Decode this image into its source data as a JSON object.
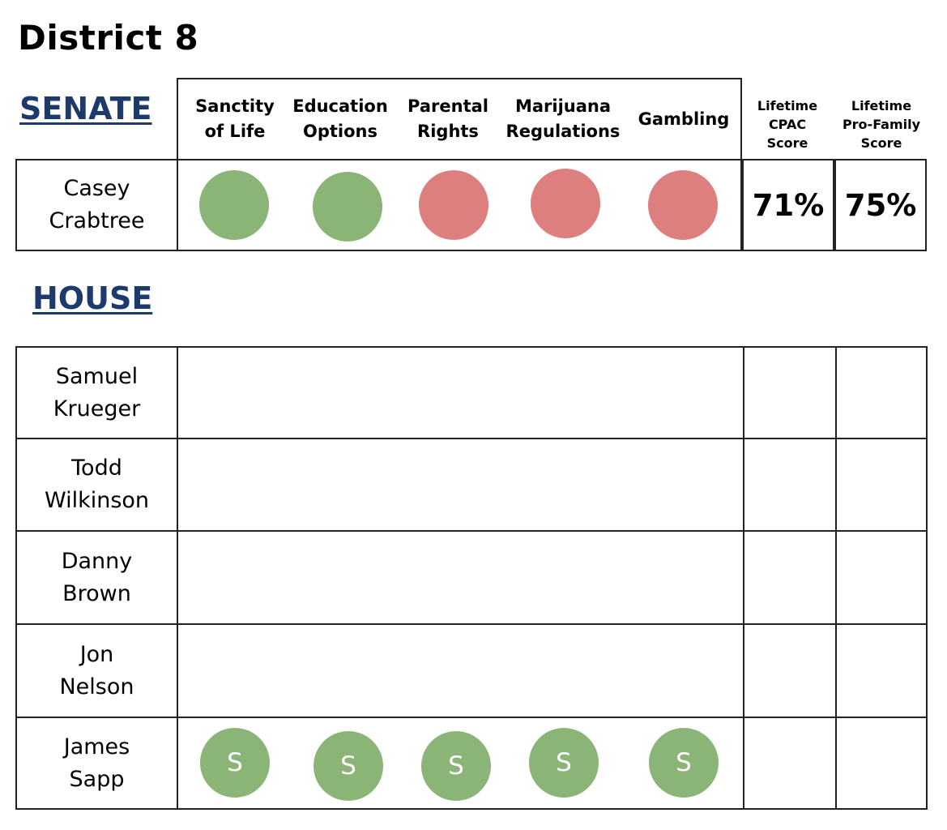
{
  "title": "District 8",
  "senate": {
    "label": "SENATE",
    "columns": [
      "Sanctity\nof Life",
      "Education\nOptions",
      "Parental\nRights",
      "Marijuana\nRegulations",
      "Gambling"
    ],
    "score_columns": [
      "Lifetime\nCPAC\nScore",
      "Lifetime\nPro-Family\nScore"
    ],
    "candidate": {
      "name": "Casey\nCrabtree",
      "positions": [
        "support",
        "support",
        "oppose",
        "oppose",
        "oppose"
      ],
      "cpac_score": "71%",
      "pro_family_score": "75%"
    }
  },
  "house": {
    "label": "HOUSE",
    "candidates": [
      {
        "name": "Samuel\nKrueger",
        "positions": []
      },
      {
        "name": "Todd\nWilkinson",
        "positions": []
      },
      {
        "name": "Danny\nBrown",
        "positions": []
      },
      {
        "name": "Jon\nNelson",
        "positions": []
      },
      {
        "name": "James\nSapp",
        "positions": [
          "S",
          "S",
          "S",
          "S",
          "S"
        ]
      }
    ]
  },
  "colors": {
    "support": "#8ab576",
    "oppose": "#dd7f7f",
    "section_label": "#1c3a6b"
  }
}
